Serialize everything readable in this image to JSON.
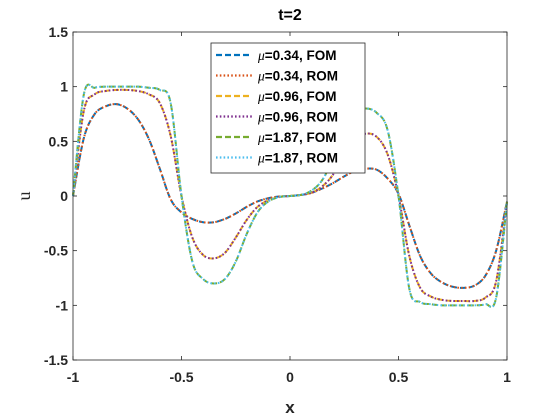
{
  "chart_data": {
    "type": "line",
    "title": "t=2",
    "xlabel": "x",
    "ylabel": "u",
    "xlim": [
      -1,
      1
    ],
    "ylim": [
      -1.5,
      1.5
    ],
    "xticks": [
      -1,
      -0.5,
      0,
      0.5,
      1
    ],
    "xtick_labels": [
      "-1",
      "-0.5",
      "0",
      "0.5",
      "1"
    ],
    "yticks": [
      -1.5,
      -1,
      -0.5,
      0,
      0.5,
      1,
      1.5
    ],
    "ytick_labels": [
      "-1.5",
      "-1",
      "-0.5",
      "0",
      "0.5",
      "1",
      "1.5"
    ],
    "grid": false,
    "legend_position": "top-center",
    "series": [
      {
        "name": "μ=0.34, FOM",
        "legend_symbol": "μ",
        "legend_rest": "=0.34, FOM",
        "color": "#0072BD",
        "dash": "dashed",
        "x": [
          -1,
          -0.95,
          -0.9,
          -0.85,
          -0.8,
          -0.75,
          -0.7,
          -0.65,
          -0.6,
          -0.55,
          -0.5,
          -0.45,
          -0.4,
          -0.35,
          -0.3,
          -0.25,
          -0.2,
          -0.15,
          -0.1,
          -0.05,
          0,
          0.05,
          0.1,
          0.15,
          0.2,
          0.25,
          0.3,
          0.35,
          0.4,
          0.45,
          0.5,
          0.55,
          0.6,
          0.65,
          0.7,
          0.75,
          0.8,
          0.85,
          0.9,
          0.95,
          1
        ],
        "y": [
          0,
          0.53,
          0.75,
          0.82,
          0.84,
          0.8,
          0.7,
          0.52,
          0.25,
          -0.03,
          -0.15,
          -0.21,
          -0.24,
          -0.24,
          -0.21,
          -0.16,
          -0.1,
          -0.05,
          -0.02,
          -0.005,
          0,
          0.01,
          0.03,
          0.07,
          0.12,
          0.18,
          0.23,
          0.25,
          0.24,
          0.16,
          0.02,
          -0.27,
          -0.55,
          -0.71,
          -0.79,
          -0.83,
          -0.84,
          -0.82,
          -0.73,
          -0.5,
          -0.05
        ]
      },
      {
        "name": "μ=0.34, ROM",
        "legend_symbol": "μ",
        "legend_rest": "=0.34, ROM",
        "color": "#D95319",
        "dash": "dotted",
        "x": [
          -1,
          -0.95,
          -0.9,
          -0.85,
          -0.8,
          -0.75,
          -0.7,
          -0.65,
          -0.6,
          -0.55,
          -0.5,
          -0.45,
          -0.4,
          -0.35,
          -0.3,
          -0.25,
          -0.2,
          -0.15,
          -0.1,
          -0.05,
          0,
          0.05,
          0.1,
          0.15,
          0.2,
          0.25,
          0.3,
          0.35,
          0.4,
          0.45,
          0.5,
          0.55,
          0.6,
          0.65,
          0.7,
          0.75,
          0.8,
          0.85,
          0.9,
          0.95,
          1
        ],
        "y": [
          0,
          0.53,
          0.75,
          0.82,
          0.84,
          0.8,
          0.7,
          0.52,
          0.25,
          -0.03,
          -0.15,
          -0.21,
          -0.24,
          -0.24,
          -0.21,
          -0.16,
          -0.1,
          -0.05,
          -0.02,
          -0.005,
          0,
          0.01,
          0.03,
          0.07,
          0.12,
          0.18,
          0.23,
          0.25,
          0.24,
          0.16,
          0.02,
          -0.27,
          -0.55,
          -0.71,
          -0.79,
          -0.83,
          -0.84,
          -0.82,
          -0.73,
          -0.5,
          -0.05
        ]
      },
      {
        "name": "μ=0.96, FOM",
        "legend_symbol": "μ",
        "legend_rest": "=0.96, FOM",
        "color": "#EDB120",
        "dash": "dashed",
        "x": [
          -1,
          -0.95,
          -0.9,
          -0.85,
          -0.8,
          -0.75,
          -0.7,
          -0.65,
          -0.6,
          -0.55,
          -0.5,
          -0.45,
          -0.4,
          -0.35,
          -0.3,
          -0.25,
          -0.2,
          -0.15,
          -0.1,
          -0.05,
          0,
          0.05,
          0.1,
          0.15,
          0.2,
          0.25,
          0.3,
          0.35,
          0.4,
          0.45,
          0.5,
          0.55,
          0.6,
          0.65,
          0.7,
          0.75,
          0.8,
          0.85,
          0.9,
          0.95,
          1
        ],
        "y": [
          0,
          0.78,
          0.93,
          0.96,
          0.97,
          0.97,
          0.96,
          0.93,
          0.85,
          0.55,
          0,
          -0.38,
          -0.54,
          -0.57,
          -0.52,
          -0.38,
          -0.22,
          -0.1,
          -0.04,
          -0.01,
          0,
          0.01,
          0.03,
          0.09,
          0.2,
          0.38,
          0.52,
          0.57,
          0.54,
          0.38,
          0,
          -0.55,
          -0.84,
          -0.92,
          -0.95,
          -0.96,
          -0.96,
          -0.96,
          -0.93,
          -0.78,
          -0.05
        ]
      },
      {
        "name": "μ=0.96, ROM",
        "legend_symbol": "μ",
        "legend_rest": "=0.96, ROM",
        "color": "#7E2F8E",
        "dash": "dotted",
        "x": [
          -1,
          -0.95,
          -0.9,
          -0.85,
          -0.8,
          -0.75,
          -0.7,
          -0.65,
          -0.6,
          -0.55,
          -0.5,
          -0.45,
          -0.4,
          -0.35,
          -0.3,
          -0.25,
          -0.2,
          -0.15,
          -0.1,
          -0.05,
          0,
          0.05,
          0.1,
          0.15,
          0.2,
          0.25,
          0.3,
          0.35,
          0.4,
          0.45,
          0.5,
          0.55,
          0.6,
          0.65,
          0.7,
          0.75,
          0.8,
          0.85,
          0.9,
          0.95,
          1
        ],
        "y": [
          0,
          0.78,
          0.93,
          0.96,
          0.97,
          0.97,
          0.96,
          0.93,
          0.85,
          0.55,
          0,
          -0.38,
          -0.54,
          -0.57,
          -0.52,
          -0.38,
          -0.22,
          -0.1,
          -0.04,
          -0.01,
          0,
          0.01,
          0.03,
          0.09,
          0.2,
          0.38,
          0.52,
          0.57,
          0.54,
          0.38,
          0,
          -0.55,
          -0.84,
          -0.92,
          -0.95,
          -0.96,
          -0.96,
          -0.96,
          -0.93,
          -0.78,
          -0.05
        ]
      },
      {
        "name": "μ=1.87, FOM",
        "legend_symbol": "μ",
        "legend_rest": "=1.87, FOM",
        "color": "#77AC30",
        "dash": "dashed",
        "x": [
          -1,
          -0.95,
          -0.9,
          -0.85,
          -0.8,
          -0.75,
          -0.7,
          -0.65,
          -0.6,
          -0.55,
          -0.5,
          -0.45,
          -0.4,
          -0.35,
          -0.3,
          -0.25,
          -0.2,
          -0.15,
          -0.1,
          -0.05,
          0,
          0.05,
          0.1,
          0.15,
          0.2,
          0.25,
          0.3,
          0.35,
          0.4,
          0.45,
          0.5,
          0.55,
          0.6,
          0.65,
          0.7,
          0.75,
          0.8,
          0.85,
          0.9,
          0.95,
          1
        ],
        "y": [
          0,
          0.93,
          0.99,
          1.0,
          1.0,
          1.0,
          1.0,
          0.99,
          0.97,
          0.85,
          0,
          -0.6,
          -0.76,
          -0.8,
          -0.76,
          -0.6,
          -0.35,
          -0.15,
          -0.05,
          -0.01,
          0,
          0.01,
          0.05,
          0.15,
          0.35,
          0.6,
          0.76,
          0.8,
          0.76,
          0.6,
          0,
          -0.85,
          -0.97,
          -0.99,
          -1.0,
          -1.0,
          -1.0,
          -1.0,
          -0.99,
          -0.93,
          -0.05
        ]
      },
      {
        "name": "μ=1.87, ROM",
        "legend_symbol": "μ",
        "legend_rest": "=1.87, ROM",
        "color": "#4DBEEE",
        "dash": "dotted",
        "x": [
          -1,
          -0.95,
          -0.9,
          -0.85,
          -0.8,
          -0.75,
          -0.7,
          -0.65,
          -0.6,
          -0.55,
          -0.5,
          -0.45,
          -0.4,
          -0.35,
          -0.3,
          -0.25,
          -0.2,
          -0.15,
          -0.1,
          -0.05,
          0,
          0.05,
          0.1,
          0.15,
          0.2,
          0.25,
          0.3,
          0.35,
          0.4,
          0.45,
          0.5,
          0.55,
          0.6,
          0.65,
          0.7,
          0.75,
          0.8,
          0.85,
          0.9,
          0.95,
          1
        ],
        "y": [
          0,
          0.93,
          0.99,
          1.0,
          1.0,
          1.0,
          1.0,
          0.99,
          0.97,
          0.85,
          0,
          -0.6,
          -0.76,
          -0.8,
          -0.76,
          -0.6,
          -0.35,
          -0.15,
          -0.05,
          -0.01,
          0,
          0.01,
          0.05,
          0.15,
          0.35,
          0.6,
          0.76,
          0.8,
          0.76,
          0.6,
          0,
          -0.85,
          -0.97,
          -0.99,
          -1.0,
          -1.0,
          -1.0,
          -1.0,
          -0.99,
          -0.93,
          -0.05
        ]
      }
    ]
  }
}
